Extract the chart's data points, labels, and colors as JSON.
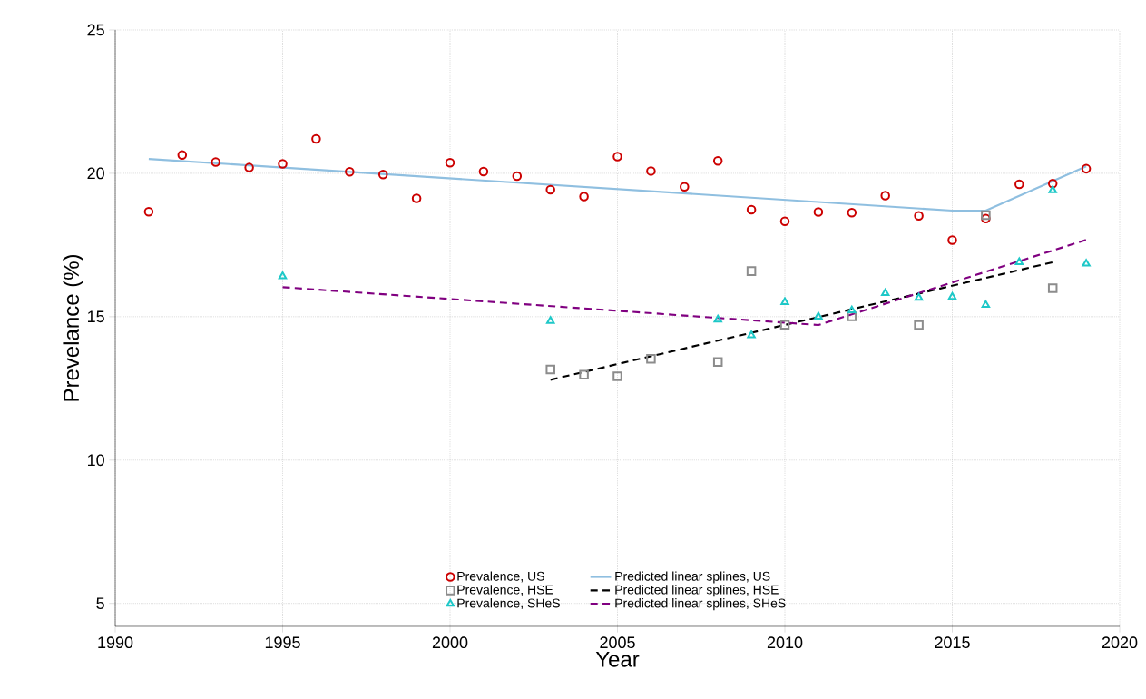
{
  "chart_data": {
    "type": "scatter",
    "xlabel": "Year",
    "ylabel": "Prevelance (%)",
    "xlim": [
      1990,
      2020
    ],
    "ylim": [
      4.2,
      25
    ],
    "xticks": [
      1990,
      1995,
      2000,
      2005,
      2010,
      2015,
      2020
    ],
    "yticks": [
      5,
      10,
      15,
      20,
      25
    ],
    "grid": true,
    "legend": "bottom",
    "series": [
      {
        "name": "Prevalence, US",
        "marker": "circle",
        "color": "#cc0000",
        "x": [
          1991,
          1992,
          1993,
          1994,
          1995,
          1996,
          1997,
          1998,
          1999,
          2000,
          2001,
          2002,
          2003,
          2004,
          2005,
          2006,
          2007,
          2008,
          2009,
          2010,
          2011,
          2012,
          2013,
          2014,
          2015,
          2016,
          2017,
          2018,
          2019
        ],
        "values": [
          18.66,
          20.64,
          20.39,
          20.2,
          20.33,
          21.2,
          20.05,
          19.96,
          19.13,
          20.37,
          20.06,
          19.9,
          19.43,
          19.19,
          20.58,
          20.08,
          19.53,
          20.43,
          18.73,
          18.33,
          18.65,
          18.63,
          19.22,
          18.52,
          17.67,
          18.42,
          19.62,
          19.64,
          20.16
        ]
      },
      {
        "name": "Prevalence, HSE",
        "marker": "square",
        "color": "#8c8c8c",
        "x": [
          2003,
          2004,
          2005,
          2006,
          2008,
          2009,
          2010,
          2012,
          2014,
          2016,
          2018
        ],
        "values": [
          13.16,
          12.98,
          12.92,
          13.53,
          13.42,
          16.59,
          14.72,
          15.01,
          14.71,
          18.54,
          15.99
        ]
      },
      {
        "name": "Prevalence, SHeS",
        "marker": "triangle",
        "color": "#1ec8c8",
        "x": [
          1995,
          2003,
          2008,
          2009,
          2010,
          2011,
          2012,
          2013,
          2014,
          2015,
          2016,
          2017,
          2018,
          2019
        ],
        "values": [
          16.41,
          14.85,
          14.9,
          14.35,
          15.51,
          15.0,
          15.22,
          15.82,
          15.66,
          15.69,
          15.41,
          16.9,
          19.41,
          16.85
        ]
      },
      {
        "name": "Predicted linear splines, US",
        "type": "line",
        "line_style": "solid",
        "color": "#8fbfe0",
        "x": [
          1991,
          2015,
          2016,
          2019
        ],
        "values": [
          20.5,
          18.7,
          18.7,
          20.24
        ]
      },
      {
        "name": "Predicted linear splines, HSE",
        "type": "line",
        "line_style": "dashed",
        "color": "#000000",
        "x": [
          2003,
          2018
        ],
        "values": [
          12.8,
          16.9
        ]
      },
      {
        "name": "Predicted linear splines, SHeS",
        "type": "line",
        "line_style": "dashed",
        "color": "#800080",
        "x": [
          1995,
          2011,
          2019
        ],
        "values": [
          16.03,
          14.71,
          17.68
        ]
      }
    ]
  }
}
